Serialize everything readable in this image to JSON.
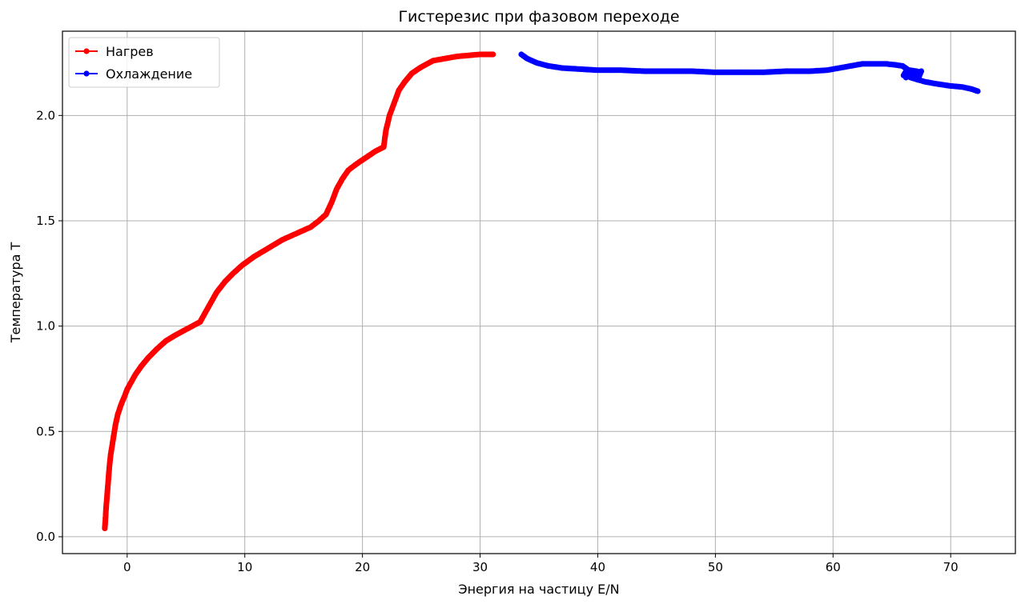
{
  "chart_data": {
    "type": "line",
    "title": "Гистерезис при фазовом переходе",
    "xlabel": "Энергия на частицу E/N",
    "ylabel": "Температура T",
    "xlim": [
      -5.5,
      75.5
    ],
    "ylim": [
      -0.08,
      2.4
    ],
    "xticks": [
      0,
      10,
      20,
      30,
      40,
      50,
      60,
      70
    ],
    "yticks": [
      0.0,
      0.5,
      1.0,
      1.5,
      2.0
    ],
    "grid": true,
    "legend_position": "top-left",
    "series": [
      {
        "name": "Нагрев",
        "color": "#ff0000",
        "marker": "circle",
        "x": [
          -1.9,
          -1.85,
          -1.8,
          -1.7,
          -1.6,
          -1.5,
          -1.4,
          -1.2,
          -1.0,
          -0.8,
          -0.5,
          -0.2,
          0.0,
          0.3,
          0.7,
          1.2,
          1.8,
          2.5,
          3.3,
          4.2,
          5.2,
          6.2,
          6.5,
          7.0,
          7.6,
          8.3,
          9.0,
          9.8,
          10.8,
          12.0,
          13.2,
          14.4,
          15.6,
          16.3,
          16.9,
          17.4,
          17.8,
          18.3,
          18.8,
          19.5,
          20.3,
          21.1,
          21.8,
          22.0,
          22.3,
          22.7,
          23.1,
          23.6,
          24.2,
          25.0,
          26.0,
          27.0,
          28.0,
          29.0,
          30.0,
          30.8,
          31.1
        ],
        "y": [
          0.04,
          0.08,
          0.13,
          0.2,
          0.27,
          0.34,
          0.39,
          0.46,
          0.53,
          0.58,
          0.63,
          0.67,
          0.7,
          0.73,
          0.77,
          0.81,
          0.85,
          0.89,
          0.93,
          0.96,
          0.99,
          1.02,
          1.05,
          1.1,
          1.16,
          1.21,
          1.25,
          1.29,
          1.33,
          1.37,
          1.41,
          1.44,
          1.47,
          1.5,
          1.53,
          1.59,
          1.65,
          1.7,
          1.74,
          1.77,
          1.8,
          1.83,
          1.85,
          1.93,
          2.0,
          2.06,
          2.12,
          2.16,
          2.2,
          2.23,
          2.26,
          2.27,
          2.28,
          2.285,
          2.29,
          2.29,
          2.29
        ],
        "values_note_removed": true
      },
      {
        "name": "Охлаждение",
        "color": "#0000ff",
        "marker": "circle",
        "x": [
          33.5,
          34.0,
          34.8,
          35.8,
          37.0,
          38.5,
          40.0,
          42.0,
          44.0,
          46.0,
          48.0,
          50.0,
          52.0,
          54.0,
          56.0,
          58.0,
          59.5,
          60.5,
          61.5,
          62.5,
          63.5,
          64.5,
          65.3,
          65.9,
          66.3,
          66.0,
          66.5,
          67.1,
          67.3,
          66.8,
          66.2,
          66.9,
          67.5,
          67.2,
          66.6,
          67.8,
          68.8,
          70.0,
          71.0,
          71.8,
          72.3
        ],
        "y": [
          2.29,
          2.27,
          2.25,
          2.235,
          2.225,
          2.22,
          2.215,
          2.215,
          2.21,
          2.21,
          2.21,
          2.205,
          2.205,
          2.205,
          2.21,
          2.21,
          2.215,
          2.225,
          2.235,
          2.245,
          2.245,
          2.245,
          2.24,
          2.235,
          2.22,
          2.19,
          2.215,
          2.21,
          2.19,
          2.2,
          2.18,
          2.2,
          2.21,
          2.17,
          2.18,
          2.16,
          2.15,
          2.14,
          2.135,
          2.125,
          2.115
        ]
      }
    ]
  }
}
